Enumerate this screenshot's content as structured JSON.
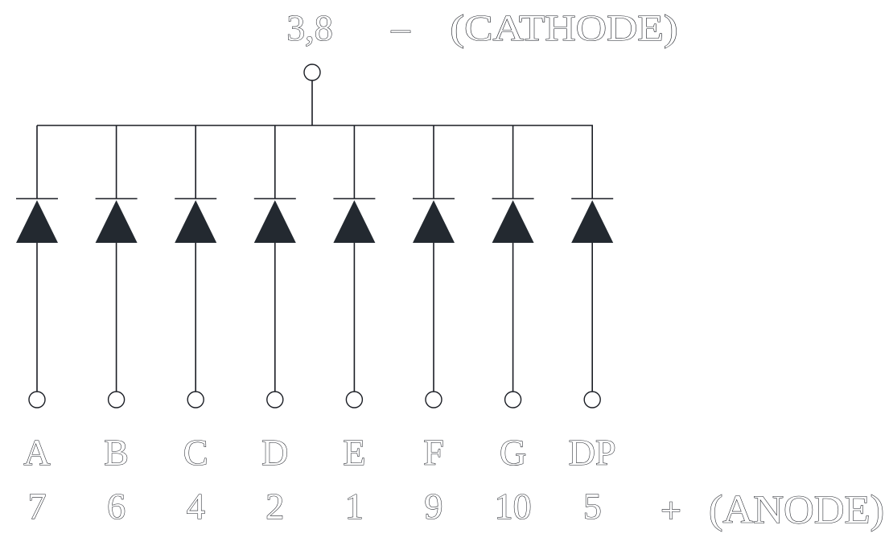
{
  "common": {
    "pins": "3,8",
    "sign": "–",
    "name": "(CATHODE)"
  },
  "segments": [
    {
      "label": "A",
      "pin": "7"
    },
    {
      "label": "B",
      "pin": "6"
    },
    {
      "label": "C",
      "pin": "4"
    },
    {
      "label": "D",
      "pin": "2"
    },
    {
      "label": "E",
      "pin": "1"
    },
    {
      "label": "F",
      "pin": "9"
    },
    {
      "label": "G",
      "pin": "10"
    },
    {
      "label": "DP",
      "pin": "5"
    }
  ],
  "anode": {
    "sign": "+",
    "name": "(ANODE)"
  },
  "colors": {
    "line": "#1a1d24",
    "diode_fill": "#232930",
    "background": "#ffffff"
  }
}
